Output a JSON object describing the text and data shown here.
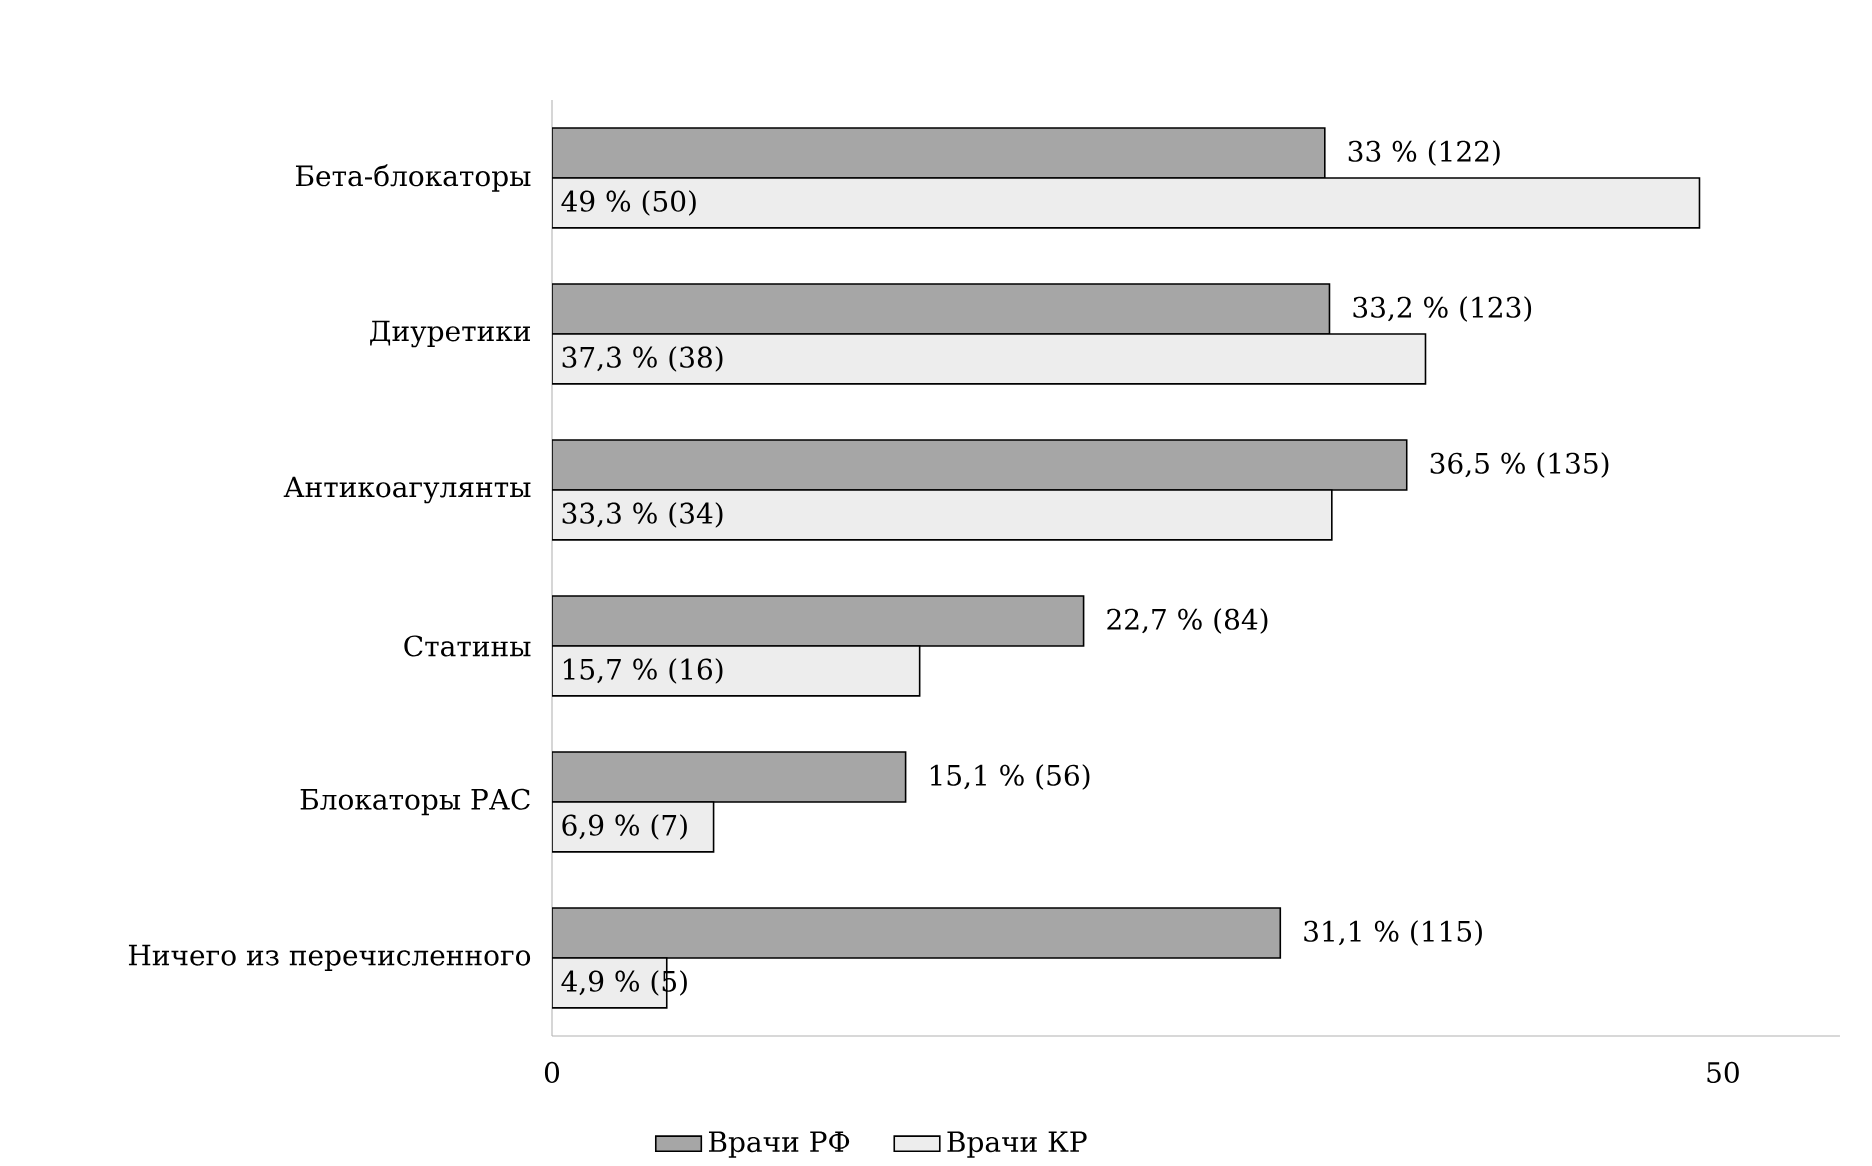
{
  "chart_data": {
    "type": "bar",
    "orientation": "horizontal",
    "categories": [
      "Бета-блокаторы",
      "Диуретики",
      "Антикоагулянты",
      "Статины",
      "Блокаторы РАС",
      "Ничего из перечисленного"
    ],
    "series": [
      {
        "name": "Врачи РФ",
        "color": "#a6a6a6",
        "values": [
          33,
          33.2,
          36.5,
          22.7,
          15.1,
          31.1
        ],
        "value_labels": [
          "33 % (122)",
          "33,2 % (123)",
          "36,5 % (135)",
          "22,7 % (84)",
          "15,1 % (56)",
          "31,1 % (115)"
        ]
      },
      {
        "name": "Врачи КР",
        "color": "#ededed",
        "values": [
          49,
          37.3,
          33.3,
          15.7,
          6.9,
          4.9
        ],
        "value_labels": [
          "49 % (50)",
          "37,3 % (38)",
          "33,3 % (34)",
          "15,7 % (16)",
          "6,9 % (7)",
          "4,9 % (5)"
        ]
      }
    ],
    "xlim": [
      0,
      55
    ],
    "xticks": [
      0,
      50
    ],
    "grid": false,
    "legend": "bottom"
  }
}
